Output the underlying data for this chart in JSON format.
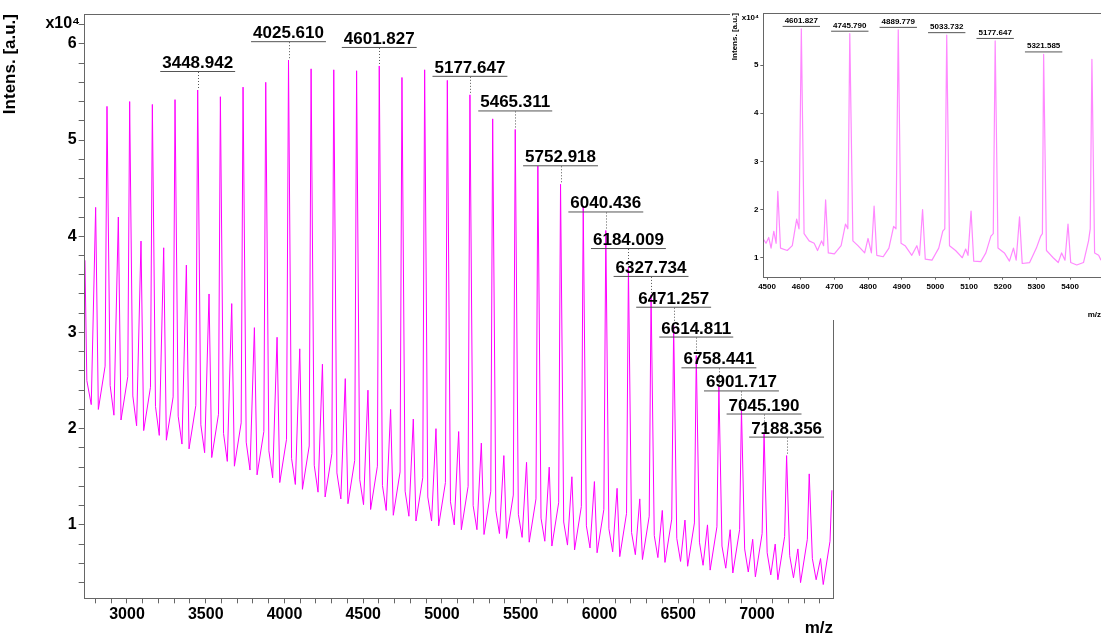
{
  "chart_data": [
    {
      "type": "line",
      "xlabel": "m/z",
      "ylabel": "Intens. [a.u.]",
      "marker": "none",
      "line_style": "solid",
      "annotations": [
        "x10⁴",
        {
          "text": "3448.942",
          "x": 3448.942,
          "y": 5.52
        },
        {
          "text": "4025.610",
          "x": 4025.61,
          "y": 5.83
        },
        {
          "text": "4601.827",
          "x": 4601.827,
          "y": 5.77
        },
        {
          "text": "5177.647",
          "x": 5177.647,
          "y": 5.47
        },
        {
          "text": "5465.311",
          "x": 5465.311,
          "y": 5.11
        },
        {
          "text": "5752.918",
          "x": 5752.918,
          "y": 4.54
        },
        {
          "text": "6040.436",
          "x": 6040.436,
          "y": 4.06
        },
        {
          "text": "6184.009",
          "x": 6184.009,
          "y": 3.68
        },
        {
          "text": "6327.734",
          "x": 6327.734,
          "y": 3.39
        },
        {
          "text": "6471.257",
          "x": 6471.257,
          "y": 3.07
        },
        {
          "text": "6614.811",
          "x": 6614.811,
          "y": 2.76
        },
        {
          "text": "6758.441",
          "x": 6758.441,
          "y": 2.44
        },
        {
          "text": "6901.717",
          "x": 6901.717,
          "y": 2.2
        },
        {
          "text": "7045.190",
          "x": 7045.19,
          "y": 1.96
        },
        {
          "text": "7188.356",
          "x": 7188.356,
          "y": 1.72
        }
      ],
      "x": [
        2733,
        2745,
        2773,
        2801,
        2818,
        2861,
        2873,
        2893,
        2917,
        2945,
        2962,
        3005,
        3017,
        3037,
        3061,
        3089,
        3106,
        3149,
        3161,
        3181,
        3205,
        3233,
        3250,
        3293,
        3305,
        3325,
        3349,
        3377,
        3394,
        3437,
        3448.942,
        3469,
        3493,
        3521,
        3538,
        3581,
        3593,
        3613,
        3637,
        3665,
        3682,
        3725,
        3737,
        3757,
        3781,
        3809,
        3826,
        3869,
        3881,
        3901,
        3925,
        3953,
        3970,
        4013,
        4025.61,
        4045,
        4069,
        4097,
        4114,
        4157,
        4169,
        4189,
        4213,
        4241,
        4258,
        4301,
        4313,
        4333,
        4358,
        4386,
        4403,
        4446,
        4458,
        4478,
        4502,
        4530,
        4547,
        4590,
        4601.827,
        4622,
        4646,
        4674,
        4691,
        4734,
        4746,
        4766,
        4790,
        4818,
        4835,
        4878,
        4890,
        4910,
        4934,
        4962,
        4979,
        5022,
        5034,
        5054,
        5078,
        5106,
        5123,
        5166,
        5177.647,
        5198,
        5222,
        5250,
        5267,
        5310,
        5322,
        5342,
        5365,
        5393,
        5410,
        5453,
        5465.311,
        5485,
        5509,
        5537,
        5554,
        5597,
        5609,
        5629,
        5653,
        5681,
        5698,
        5741,
        5752.918,
        5773,
        5797,
        5825,
        5842,
        5885,
        5897,
        5917,
        5940,
        5968,
        5985,
        6028,
        6040.436,
        6060,
        6084,
        6112,
        6129,
        6172,
        6184.009,
        6204,
        6228,
        6256,
        6273,
        6316,
        6327.734,
        6348,
        6371,
        6399,
        6416,
        6459,
        6471.257,
        6491,
        6515,
        6543,
        6560,
        6603,
        6614.811,
        6635,
        6658,
        6686,
        6703,
        6746,
        6758.441,
        6778,
        6802,
        6830,
        6847,
        6890,
        6901.717,
        6922,
        6945,
        6973,
        6990,
        7033,
        7045.19,
        7065,
        7088,
        7116,
        7133,
        7176,
        7188.356,
        7208,
        7232,
        7260,
        7277,
        7320,
        7332,
        7352,
        7376,
        7404,
        7421,
        7464,
        7476
      ],
      "series": [
        {
          "color": "#ff00ff",
          "values": [
            3.75,
            2.5,
            2.25,
            4.3,
            2.2,
            2.65,
            5.35,
            2.45,
            2.14,
            4.2,
            2.09,
            2.54,
            5.4,
            2.34,
            2.03,
            3.95,
            1.98,
            2.43,
            5.37,
            2.23,
            1.93,
            3.88,
            1.88,
            2.33,
            5.42,
            2.13,
            1.84,
            3.7,
            1.79,
            2.24,
            5.52,
            2.04,
            1.75,
            3.4,
            1.7,
            2.15,
            5.45,
            1.95,
            1.66,
            3.3,
            1.61,
            2.06,
            5.55,
            1.86,
            1.57,
            3.05,
            1.52,
            1.97,
            5.6,
            1.77,
            1.49,
            2.95,
            1.44,
            1.89,
            5.83,
            1.69,
            1.42,
            2.83,
            1.37,
            1.82,
            5.74,
            1.62,
            1.34,
            2.67,
            1.29,
            1.74,
            5.73,
            1.54,
            1.27,
            2.52,
            1.22,
            1.67,
            5.72,
            1.47,
            1.21,
            2.4,
            1.16,
            1.61,
            5.77,
            1.41,
            1.15,
            2.2,
            1.1,
            1.55,
            5.65,
            1.35,
            1.09,
            2.1,
            1.04,
            1.49,
            5.73,
            1.29,
            1.04,
            2.0,
            0.99,
            1.44,
            5.62,
            1.24,
            1.0,
            1.97,
            0.95,
            1.4,
            5.47,
            1.2,
            0.95,
            1.85,
            0.9,
            1.35,
            5.22,
            1.15,
            0.91,
            1.72,
            0.86,
            1.31,
            5.11,
            1.11,
            0.87,
            1.65,
            0.82,
            1.27,
            4.73,
            1.07,
            0.83,
            1.6,
            0.78,
            1.23,
            4.54,
            1.03,
            0.79,
            1.5,
            0.74,
            1.19,
            4.31,
            0.99,
            0.76,
            1.45,
            0.71,
            1.16,
            4.06,
            0.96,
            0.72,
            1.38,
            0.67,
            1.12,
            3.68,
            0.92,
            0.69,
            1.27,
            0.64,
            1.09,
            3.39,
            0.89,
            0.66,
            1.15,
            0.61,
            1.06,
            3.07,
            0.86,
            0.62,
            1.05,
            0.57,
            1.02,
            2.76,
            0.82,
            0.58,
            1.0,
            0.53,
            0.98,
            2.44,
            0.78,
            0.55,
            0.95,
            0.5,
            0.95,
            2.2,
            0.75,
            0.51,
            0.85,
            0.46,
            0.91,
            1.96,
            0.71,
            0.48,
            0.8,
            0.43,
            0.88,
            1.72,
            0.68,
            0.45,
            0.75,
            0.4,
            0.85,
            1.53,
            0.65,
            0.43,
            0.65,
            0.38,
            0.83,
            1.36
          ]
        }
      ],
      "xlim": [
        2727,
        7483
      ],
      "ylim": [
        0.24,
        6.31
      ],
      "xticks": [
        {
          "value": 2800,
          "label": null
        },
        {
          "value": 2900,
          "label": null
        },
        3000,
        {
          "value": 3100,
          "label": null
        },
        {
          "value": 3200,
          "label": null
        },
        {
          "value": 3300,
          "label": null
        },
        {
          "value": 3400,
          "label": null
        },
        3500,
        {
          "value": 3600,
          "label": null
        },
        {
          "value": 3700,
          "label": null
        },
        {
          "value": 3800,
          "label": null
        },
        {
          "value": 3900,
          "label": null
        },
        4000,
        {
          "value": 4100,
          "label": null
        },
        {
          "value": 4200,
          "label": null
        },
        {
          "value": 4300,
          "label": null
        },
        {
          "value": 4400,
          "label": null
        },
        4500,
        {
          "value": 4600,
          "label": null
        },
        {
          "value": 4700,
          "label": null
        },
        {
          "value": 4800,
          "label": null
        },
        {
          "value": 4900,
          "label": null
        },
        5000,
        {
          "value": 5100,
          "label": null
        },
        {
          "value": 5200,
          "label": null
        },
        {
          "value": 5300,
          "label": null
        },
        {
          "value": 5400,
          "label": null
        },
        5500,
        {
          "value": 5600,
          "label": null
        },
        {
          "value": 5700,
          "label": null
        },
        {
          "value": 5800,
          "label": null
        },
        {
          "value": 5900,
          "label": null
        },
        6000,
        {
          "value": 6100,
          "label": null
        },
        {
          "value": 6200,
          "label": null
        },
        {
          "value": 6300,
          "label": null
        },
        {
          "value": 6400,
          "label": null
        },
        6500,
        {
          "value": 6600,
          "label": null
        },
        {
          "value": 6700,
          "label": null
        },
        {
          "value": 6800,
          "label": null
        },
        {
          "value": 6900,
          "label": null
        },
        7000,
        {
          "value": 7100,
          "label": null
        },
        {
          "value": 7200,
          "label": null
        },
        {
          "value": 7300,
          "label": null
        },
        {
          "value": 7400,
          "label": null
        }
      ],
      "yticks": [
        {
          "value": 0.4,
          "label": null
        },
        {
          "value": 0.6,
          "label": null
        },
        {
          "value": 0.8,
          "label": null
        },
        1,
        {
          "value": 1.2,
          "label": null
        },
        {
          "value": 1.4,
          "label": null
        },
        {
          "value": 1.6,
          "label": null
        },
        {
          "value": 1.8,
          "label": null
        },
        2,
        {
          "value": 2.2,
          "label": null
        },
        {
          "value": 2.4,
          "label": null
        },
        {
          "value": 2.6,
          "label": null
        },
        {
          "value": 2.8,
          "label": null
        },
        3,
        {
          "value": 3.2,
          "label": null
        },
        {
          "value": 3.4,
          "label": null
        },
        {
          "value": 3.6,
          "label": null
        },
        {
          "value": 3.8,
          "label": null
        },
        4,
        {
          "value": 4.2,
          "label": null
        },
        {
          "value": 4.4,
          "label": null
        },
        {
          "value": 4.6,
          "label": null
        },
        {
          "value": 4.8,
          "label": null
        },
        5,
        {
          "value": 5.2,
          "label": null
        },
        {
          "value": 5.4,
          "label": null
        },
        {
          "value": 5.6,
          "label": null
        },
        {
          "value": 5.8,
          "label": null
        },
        6,
        {
          "value": 6.2,
          "label": null
        }
      ]
    },
    {
      "type": "line",
      "xlabel": "m/z",
      "ylabel": "Intens. [a.u.]",
      "marker": "none",
      "line_style": "solid",
      "annotations": [
        "x10⁴",
        {
          "text": "4601.827",
          "x": 4601.827,
          "y": 5.75
        },
        {
          "text": "4745.790",
          "x": 4745.79,
          "y": 5.65
        },
        {
          "text": "4889.779",
          "x": 4889.779,
          "y": 5.73
        },
        {
          "text": "5033.732",
          "x": 5033.732,
          "y": 5.62
        },
        {
          "text": "5177.647",
          "x": 5177.647,
          "y": 5.5
        },
        {
          "text": "5321.585",
          "x": 5321.585,
          "y": 5.22
        }
      ],
      "x": [
        4488,
        4497,
        4505,
        4512,
        4520,
        4527,
        4532,
        4540,
        4560,
        4575,
        4588,
        4595,
        4601.827,
        4610,
        4625,
        4640,
        4650,
        4662,
        4668,
        4674,
        4682,
        4700,
        4720,
        4733,
        4740,
        4745.79,
        4755,
        4770,
        4790,
        4800,
        4810,
        4818,
        4826,
        4845,
        4862,
        4876,
        4883,
        4889.779,
        4898,
        4910,
        4930,
        4945,
        4953,
        4962,
        4970,
        4990,
        5010,
        5022,
        5028,
        5033.732,
        5042,
        5060,
        5080,
        5090,
        5097,
        5106,
        5114,
        5135,
        5150,
        5165,
        5172,
        5177.647,
        5186,
        5205,
        5220,
        5232,
        5240,
        5250,
        5258,
        5280,
        5300,
        5313,
        5318,
        5321.585,
        5330,
        5350,
        5365,
        5375,
        5385,
        5394,
        5402,
        5420,
        5440,
        5455,
        5460,
        5465,
        5473,
        5485,
        5492
      ],
      "series": [
        {
          "color": "#ff88ff",
          "values": [
            1.4,
            1.3,
            1.42,
            1.2,
            1.55,
            1.3,
            2.38,
            1.2,
            1.15,
            1.25,
            1.8,
            1.6,
            5.75,
            1.5,
            1.35,
            1.3,
            1.15,
            1.35,
            1.25,
            2.2,
            1.1,
            1.08,
            1.25,
            1.7,
            1.6,
            5.65,
            1.35,
            1.25,
            1.1,
            1.4,
            1.1,
            2.07,
            1.05,
            1.02,
            1.2,
            1.65,
            1.6,
            5.73,
            1.3,
            1.25,
            1.05,
            1.25,
            1.05,
            2.0,
            0.97,
            0.95,
            1.2,
            1.55,
            1.6,
            5.62,
            1.25,
            1.15,
            1.0,
            1.18,
            1.05,
            1.97,
            0.93,
            0.92,
            1.1,
            1.45,
            1.5,
            5.5,
            1.2,
            1.1,
            0.93,
            1.2,
            0.95,
            1.85,
            0.88,
            0.9,
            1.2,
            1.45,
            1.5,
            5.22,
            1.15,
            1.0,
            0.9,
            1.1,
            0.95,
            1.7,
            0.9,
            0.85,
            0.9,
            1.35,
            1.6,
            5.12,
            1.1,
            1.05,
            0.95
          ]
        }
      ],
      "xlim": [
        4488,
        5492
      ],
      "ylim": [
        0.6,
        6.08
      ],
      "xticks": [
        4500,
        4600,
        4700,
        4800,
        4900,
        5000,
        5100,
        5200,
        5300,
        5400
      ],
      "yticks": [
        1,
        2,
        3,
        4,
        5
      ]
    }
  ]
}
